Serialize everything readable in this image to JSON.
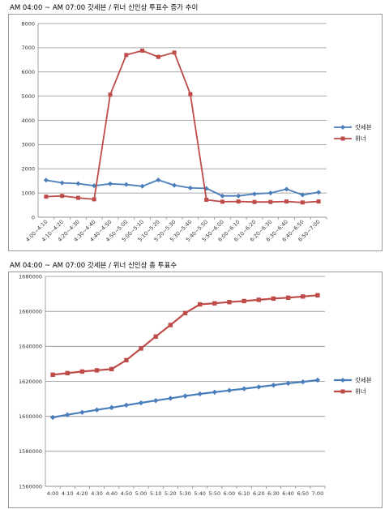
{
  "chart_data": [
    {
      "type": "line",
      "title": "AM 04:00 ~ AM 07:00 갓세븐 / 위너 신인상 투표수 증가 추이",
      "categories": [
        "4:00~4:10",
        "4:10~4:20",
        "4:20~4:30",
        "4:30~4:40",
        "4:40~4:50",
        "4:50~5:00",
        "5:00~5:10",
        "5:10~5:20",
        "5:20~5:30",
        "5:30~5:40",
        "5:40~5:50",
        "5:50~6:00",
        "6:00~6:10",
        "6:10~6:20",
        "6:20~6:30",
        "6:30~6:40",
        "6:40~6:50",
        "6:50~7:00"
      ],
      "series": [
        {
          "name": "갓세븐",
          "color": "#4a7ebb",
          "marker": "diamond",
          "values": [
            1530,
            1420,
            1390,
            1300,
            1380,
            1350,
            1280,
            1540,
            1320,
            1210,
            1190,
            880,
            880,
            960,
            1000,
            1160,
            920,
            1030
          ]
        },
        {
          "name": "위너",
          "color": "#be4b48",
          "marker": "square",
          "values": [
            850,
            880,
            800,
            740,
            5060,
            6700,
            6880,
            6620,
            6800,
            5080,
            720,
            640,
            650,
            630,
            630,
            650,
            610,
            650
          ]
        }
      ],
      "ylim": [
        0,
        8000
      ],
      "yticks": [
        "0",
        "1000",
        "2000",
        "3000",
        "4000",
        "5000",
        "6000",
        "7000",
        "8000"
      ],
      "grid": true,
      "legend": "right",
      "xlabel": "",
      "ylabel": ""
    },
    {
      "type": "line",
      "title": "AM 04:00 ~ AM 07:00 갓세븐 / 위너 신인상 총 투표수",
      "categories": [
        "4:00",
        "4:10",
        "4:20",
        "4:30",
        "4:40",
        "4:50",
        "5:00",
        "5:10",
        "5:20",
        "5:30",
        "5:40",
        "5:50",
        "6:00",
        "6:10",
        "6:20",
        "6:30",
        "6:40",
        "6:50",
        "7:00"
      ],
      "series": [
        {
          "name": "갓세븐",
          "color": "#4a7ebb",
          "marker": "diamond",
          "values": [
            1599400,
            1600900,
            1602300,
            1603700,
            1605000,
            1606400,
            1607700,
            1609000,
            1610300,
            1611600,
            1612800,
            1613800,
            1614800,
            1615800,
            1616800,
            1617800,
            1618900,
            1619700,
            1620700
          ]
        },
        {
          "name": "위너",
          "color": "#be4b48",
          "marker": "square",
          "values": [
            1623800,
            1624700,
            1625600,
            1626300,
            1627000,
            1632100,
            1638800,
            1645600,
            1652200,
            1659000,
            1664000,
            1664600,
            1665300,
            1665900,
            1666600,
            1667300,
            1667800,
            1668500,
            1669200
          ]
        }
      ],
      "ylim": [
        1560000,
        1680000
      ],
      "yticks": [
        "1560000",
        "1580000",
        "1600000",
        "1620000",
        "1640000",
        "1660000",
        "1680000"
      ],
      "grid": true,
      "legend": "right",
      "xlabel": "",
      "ylabel": ""
    }
  ]
}
